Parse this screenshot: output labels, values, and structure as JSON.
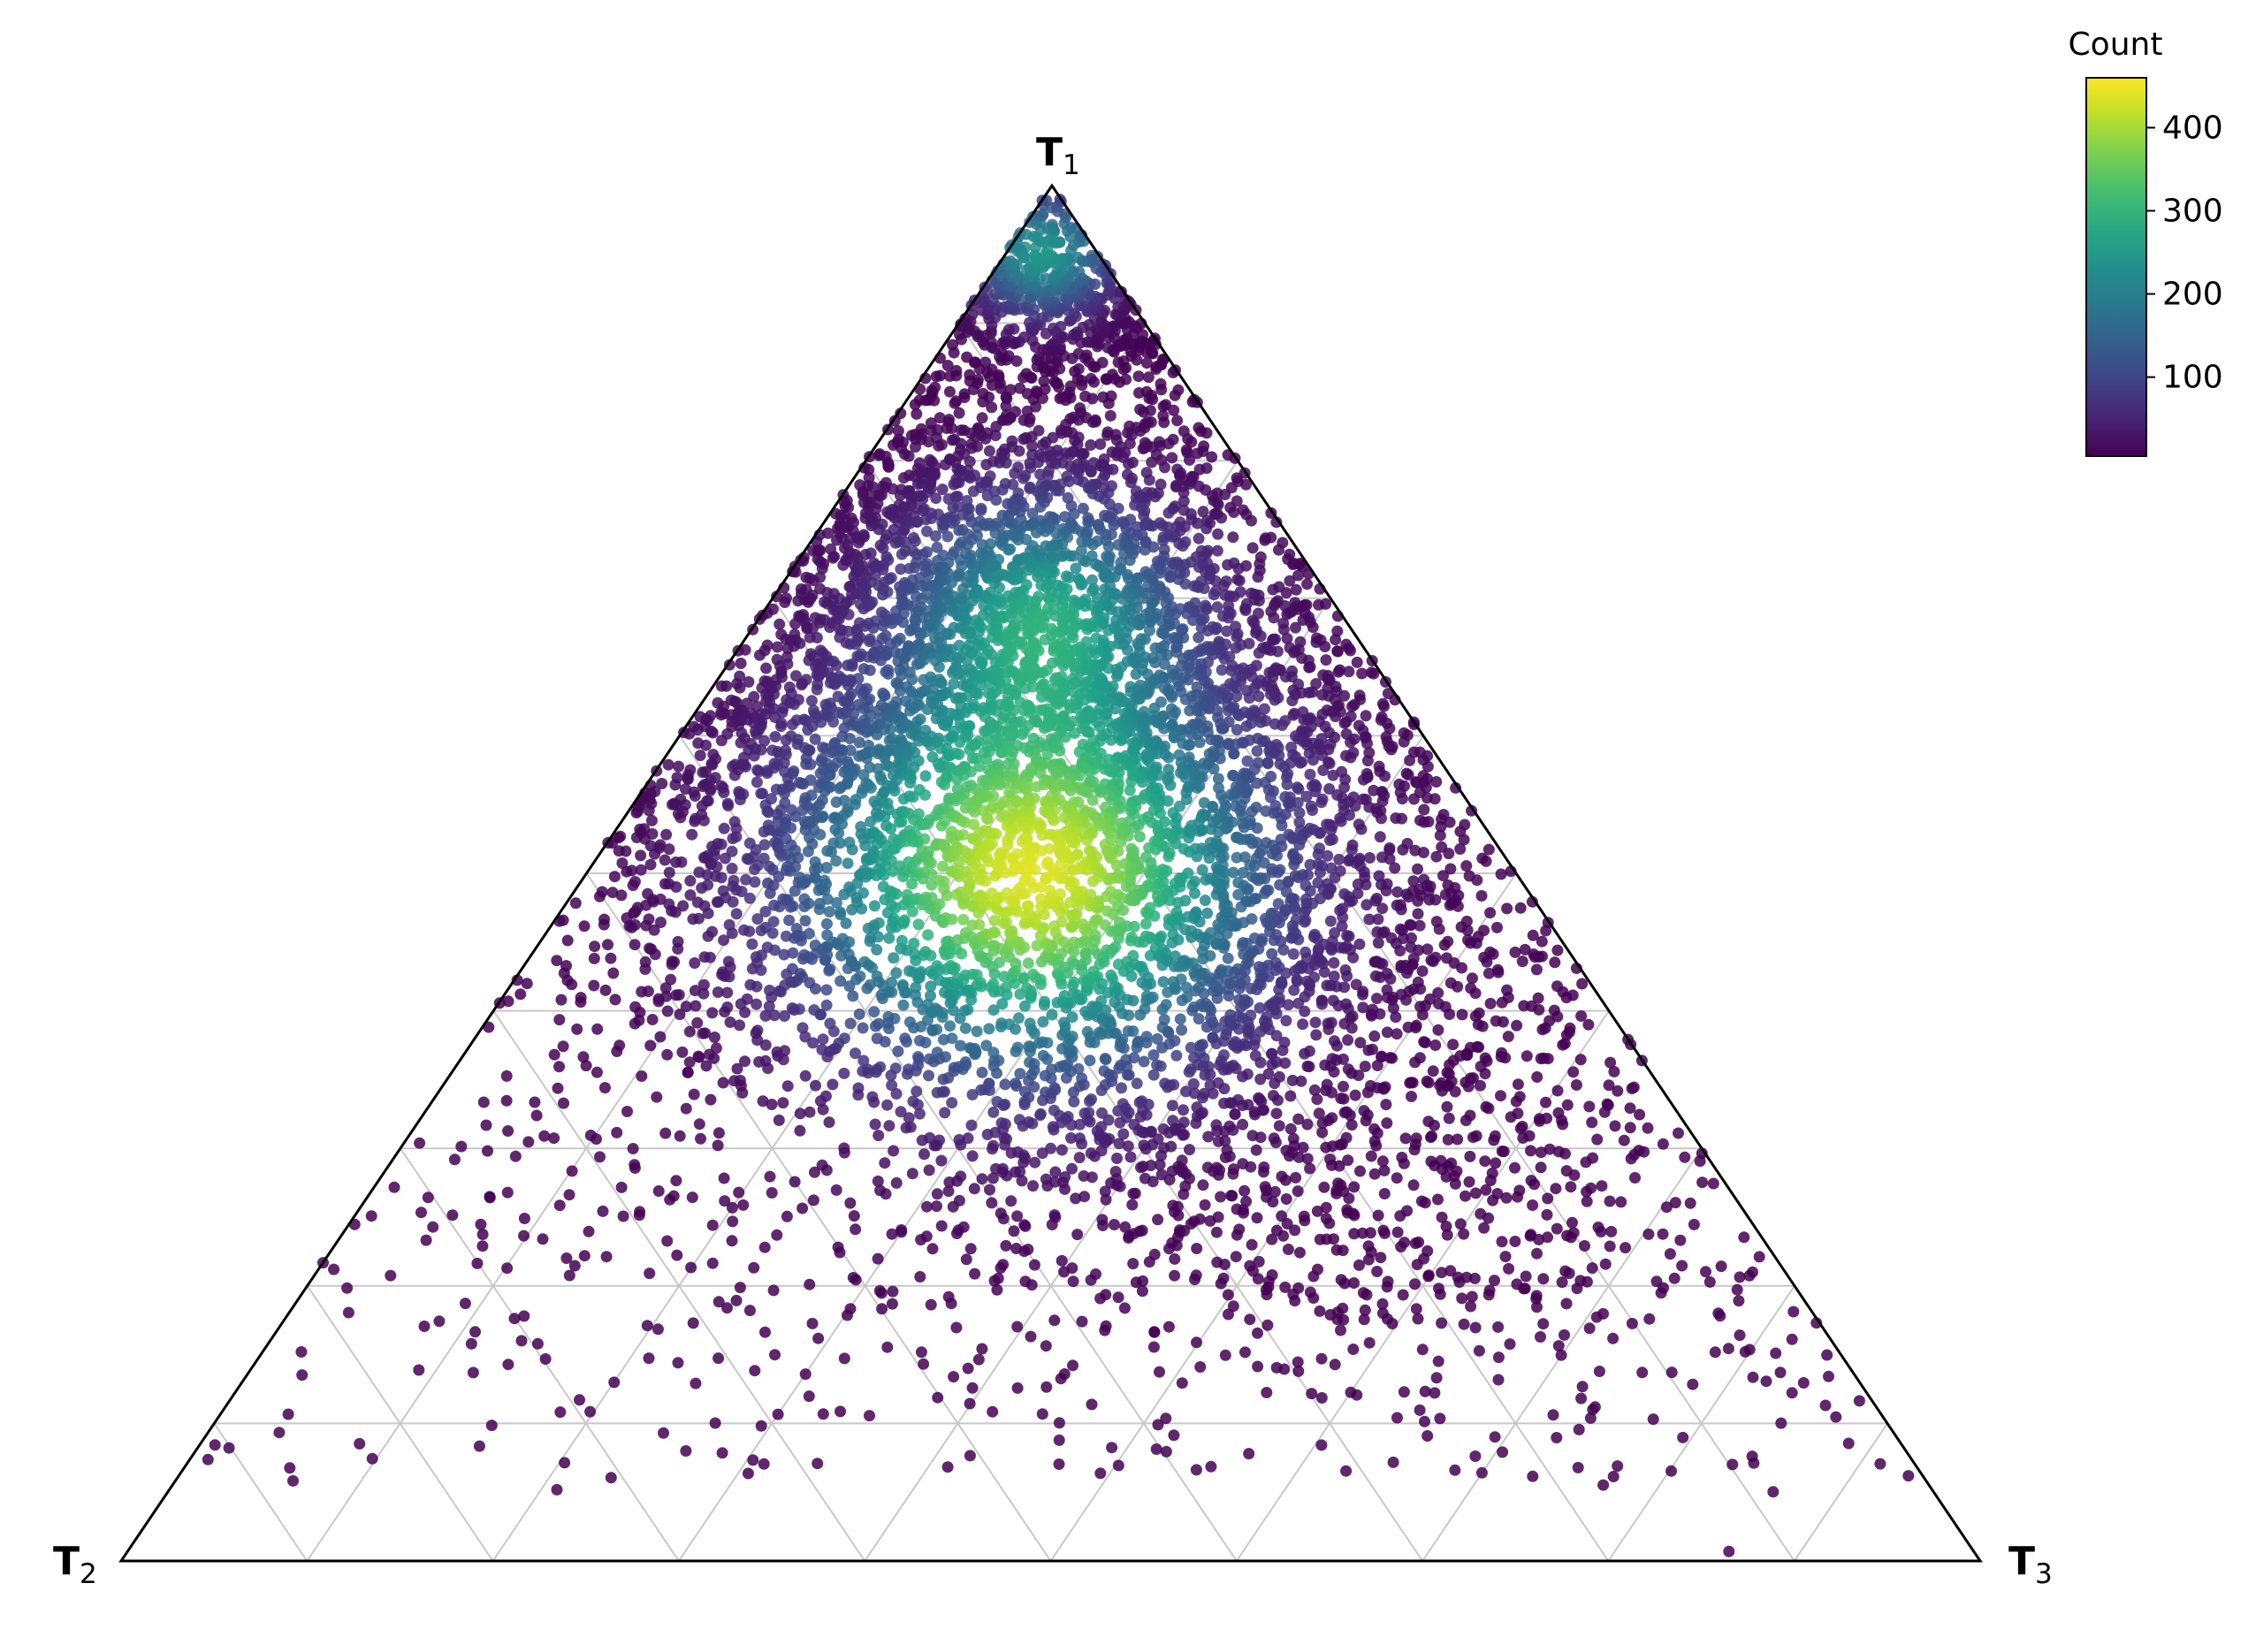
{
  "chart_data": {
    "type": "scatter",
    "subtype": "ternary density scatter",
    "vertices": {
      "top": {
        "main": "T",
        "sub": "1"
      },
      "left": {
        "main": "T",
        "sub": "2"
      },
      "right": {
        "main": "T",
        "sub": "3"
      }
    },
    "colorbar": {
      "title": "Count",
      "colormap": "viridis",
      "range": [
        5,
        460
      ],
      "ticks": [
        100,
        200,
        300,
        400
      ]
    },
    "density_modes": [
      {
        "t1": 0.5,
        "t2": 0.26,
        "t3": 0.24,
        "peak_count": 460
      },
      {
        "t1": 0.69,
        "t2": 0.16,
        "t3": 0.15,
        "peak_count": 260
      },
      {
        "t1": 0.95,
        "t2": 0.03,
        "t3": 0.02,
        "peak_count": 240
      }
    ],
    "grid": true,
    "grid_levels": [
      0.1,
      0.2,
      0.3,
      0.4,
      0.5,
      0.6,
      0.7,
      0.8,
      0.9
    ],
    "point_count_approx": 30000
  },
  "colors": {
    "axis": "#000000",
    "grid": "#c8c8c8",
    "background": "#ffffff"
  }
}
